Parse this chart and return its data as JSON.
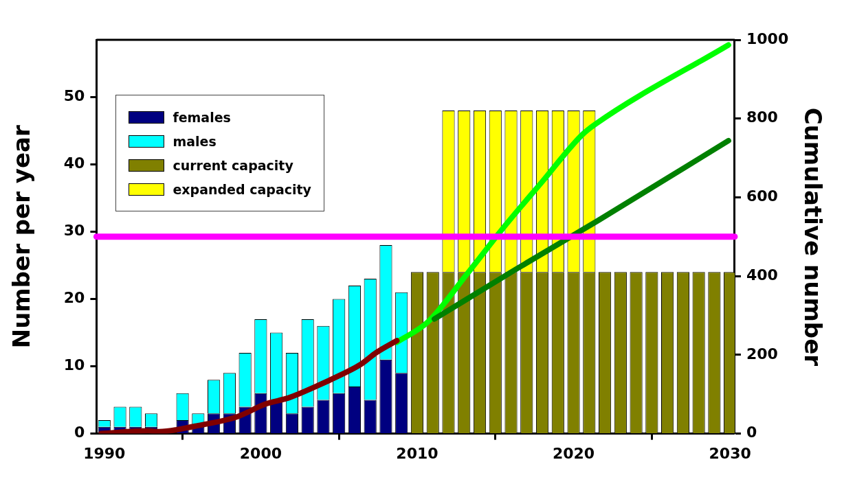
{
  "chart_data": {
    "type": "bar",
    "stacked": true,
    "legend": "top left",
    "grid": false,
    "ylabel": "Number per year",
    "y2label": "Cumulative number",
    "x": [
      1990,
      1991,
      1992,
      1993,
      1994,
      1995,
      1996,
      1997,
      1998,
      1999,
      2000,
      2001,
      2002,
      2003,
      2004,
      2005,
      2006,
      2007,
      2008,
      2009,
      2010,
      2011,
      2012,
      2013,
      2014,
      2015,
      2016,
      2017,
      2018,
      2019,
      2020,
      2021,
      2022,
      2023,
      2024,
      2025,
      2026,
      2027,
      2028,
      2029,
      2030
    ],
    "xlim": [
      1989.5,
      2030.3
    ],
    "xticks": [
      1990,
      2000,
      2010,
      2020,
      2030
    ],
    "ylim": [
      0,
      58.5
    ],
    "yticks": [
      0,
      10,
      20,
      30,
      40,
      50
    ],
    "y2lim": [
      0,
      1000
    ],
    "y2ticks": [
      0,
      200,
      400,
      600,
      800,
      1000
    ],
    "series": [
      {
        "name": "females",
        "color": "#000080",
        "values": [
          1,
          1,
          1,
          1,
          null,
          2,
          1,
          3,
          3,
          4,
          6,
          5,
          3,
          4,
          5,
          6,
          7,
          5,
          11,
          9,
          null,
          null,
          null,
          null,
          null,
          null,
          null,
          null,
          null,
          null,
          null,
          null,
          null,
          null,
          null,
          null,
          null,
          null,
          null,
          null,
          null
        ]
      },
      {
        "name": "males",
        "color": "#00ffff",
        "values": [
          1,
          3,
          3,
          2,
          null,
          4,
          2,
          5,
          6,
          8,
          11,
          10,
          9,
          13,
          11,
          14,
          15,
          18,
          17,
          12,
          null,
          null,
          null,
          null,
          null,
          null,
          null,
          null,
          null,
          null,
          null,
          null,
          null,
          null,
          null,
          null,
          null,
          null,
          null,
          null,
          null
        ]
      },
      {
        "name": "current capacity",
        "color": "#808000",
        "values": [
          null,
          null,
          null,
          null,
          null,
          null,
          null,
          null,
          null,
          null,
          null,
          null,
          null,
          null,
          null,
          null,
          null,
          null,
          null,
          null,
          24,
          24,
          24,
          24,
          24,
          24,
          24,
          24,
          24,
          24,
          24,
          24,
          24,
          24,
          24,
          24,
          24,
          24,
          24,
          24,
          24
        ]
      },
      {
        "name": "expanded capacity",
        "color": "#ffff00",
        "values": [
          null,
          null,
          null,
          null,
          null,
          null,
          null,
          null,
          null,
          null,
          null,
          null,
          null,
          null,
          null,
          null,
          null,
          null,
          null,
          null,
          null,
          null,
          24,
          24,
          24,
          24,
          24,
          24,
          24,
          24,
          24,
          24,
          null,
          null,
          null,
          null,
          null,
          null,
          null,
          null,
          null
        ]
      },
      {
        "type": "line",
        "axis": "y2",
        "color": "#800000",
        "x": [
          1989.8,
          1992.8,
          1993.5,
          1995.8,
          1998.5,
          2000.3,
          2001.8,
          2003.6,
          2004.9,
          2006.4,
          2007.4,
          2008.7
        ],
        "values": [
          0,
          7,
          5,
          19,
          43,
          75,
          91,
          121,
          145,
          176,
          206,
          236
        ]
      },
      {
        "type": "line",
        "axis": "y2",
        "color": "#008000",
        "x": [
          2011.1,
          2016.3,
          2021.6,
          2029.9
        ],
        "values": [
          291,
          417,
          542,
          744
        ]
      },
      {
        "type": "line",
        "axis": "y2",
        "color": "#00ff00",
        "x": [
          2008.7,
          2010.7,
          2013.2,
          2015.6,
          2018.0,
          2020.5,
          2021.4,
          2029.9
        ],
        "values": [
          232,
          284,
          406,
          527,
          640,
          757,
          786,
          987
        ]
      }
    ],
    "ref_lines": [
      {
        "axis": "y2",
        "value": 500,
        "color": "#ff00ff"
      }
    ]
  }
}
